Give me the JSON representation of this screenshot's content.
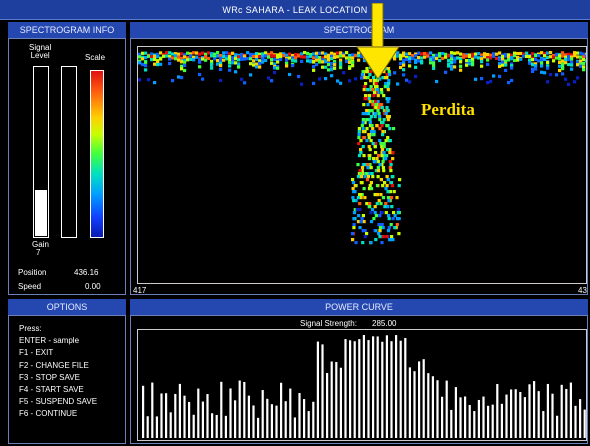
{
  "window": {
    "title": "WRc SAHARA - LEAK LOCATION"
  },
  "panels": {
    "info_header": "SPECTROGRAM INFO",
    "spectrogram_header": "SPECTROGRAM",
    "options_header": "OPTIONS",
    "power_header": "POWER CURVE"
  },
  "info": {
    "signal_level_label": "Signal\nLevel",
    "scale_label": "Scale",
    "gain_label": "Gain",
    "gain_value": "7",
    "position_label": "Position",
    "position_value": "436.16",
    "speed_label": "Speed",
    "speed_value": "0.00",
    "signal_level_fraction": 0.27
  },
  "spectrogram": {
    "x_start": "417",
    "x_end": "43",
    "annotation": "Perdita",
    "arrow_color": "#ffe600"
  },
  "options": {
    "items": [
      "Press:",
      "ENTER - sample",
      "F1 - EXIT",
      "F2 - CHANGE FILE",
      "F3 - STOP SAVE",
      "F4 - START SAVE",
      "F5 - SUSPEND SAVE",
      "F6 - CONTINUE"
    ]
  },
  "power_curve": {
    "signal_strength_label": "Signal Strength:",
    "signal_strength_value": "285.00"
  }
}
